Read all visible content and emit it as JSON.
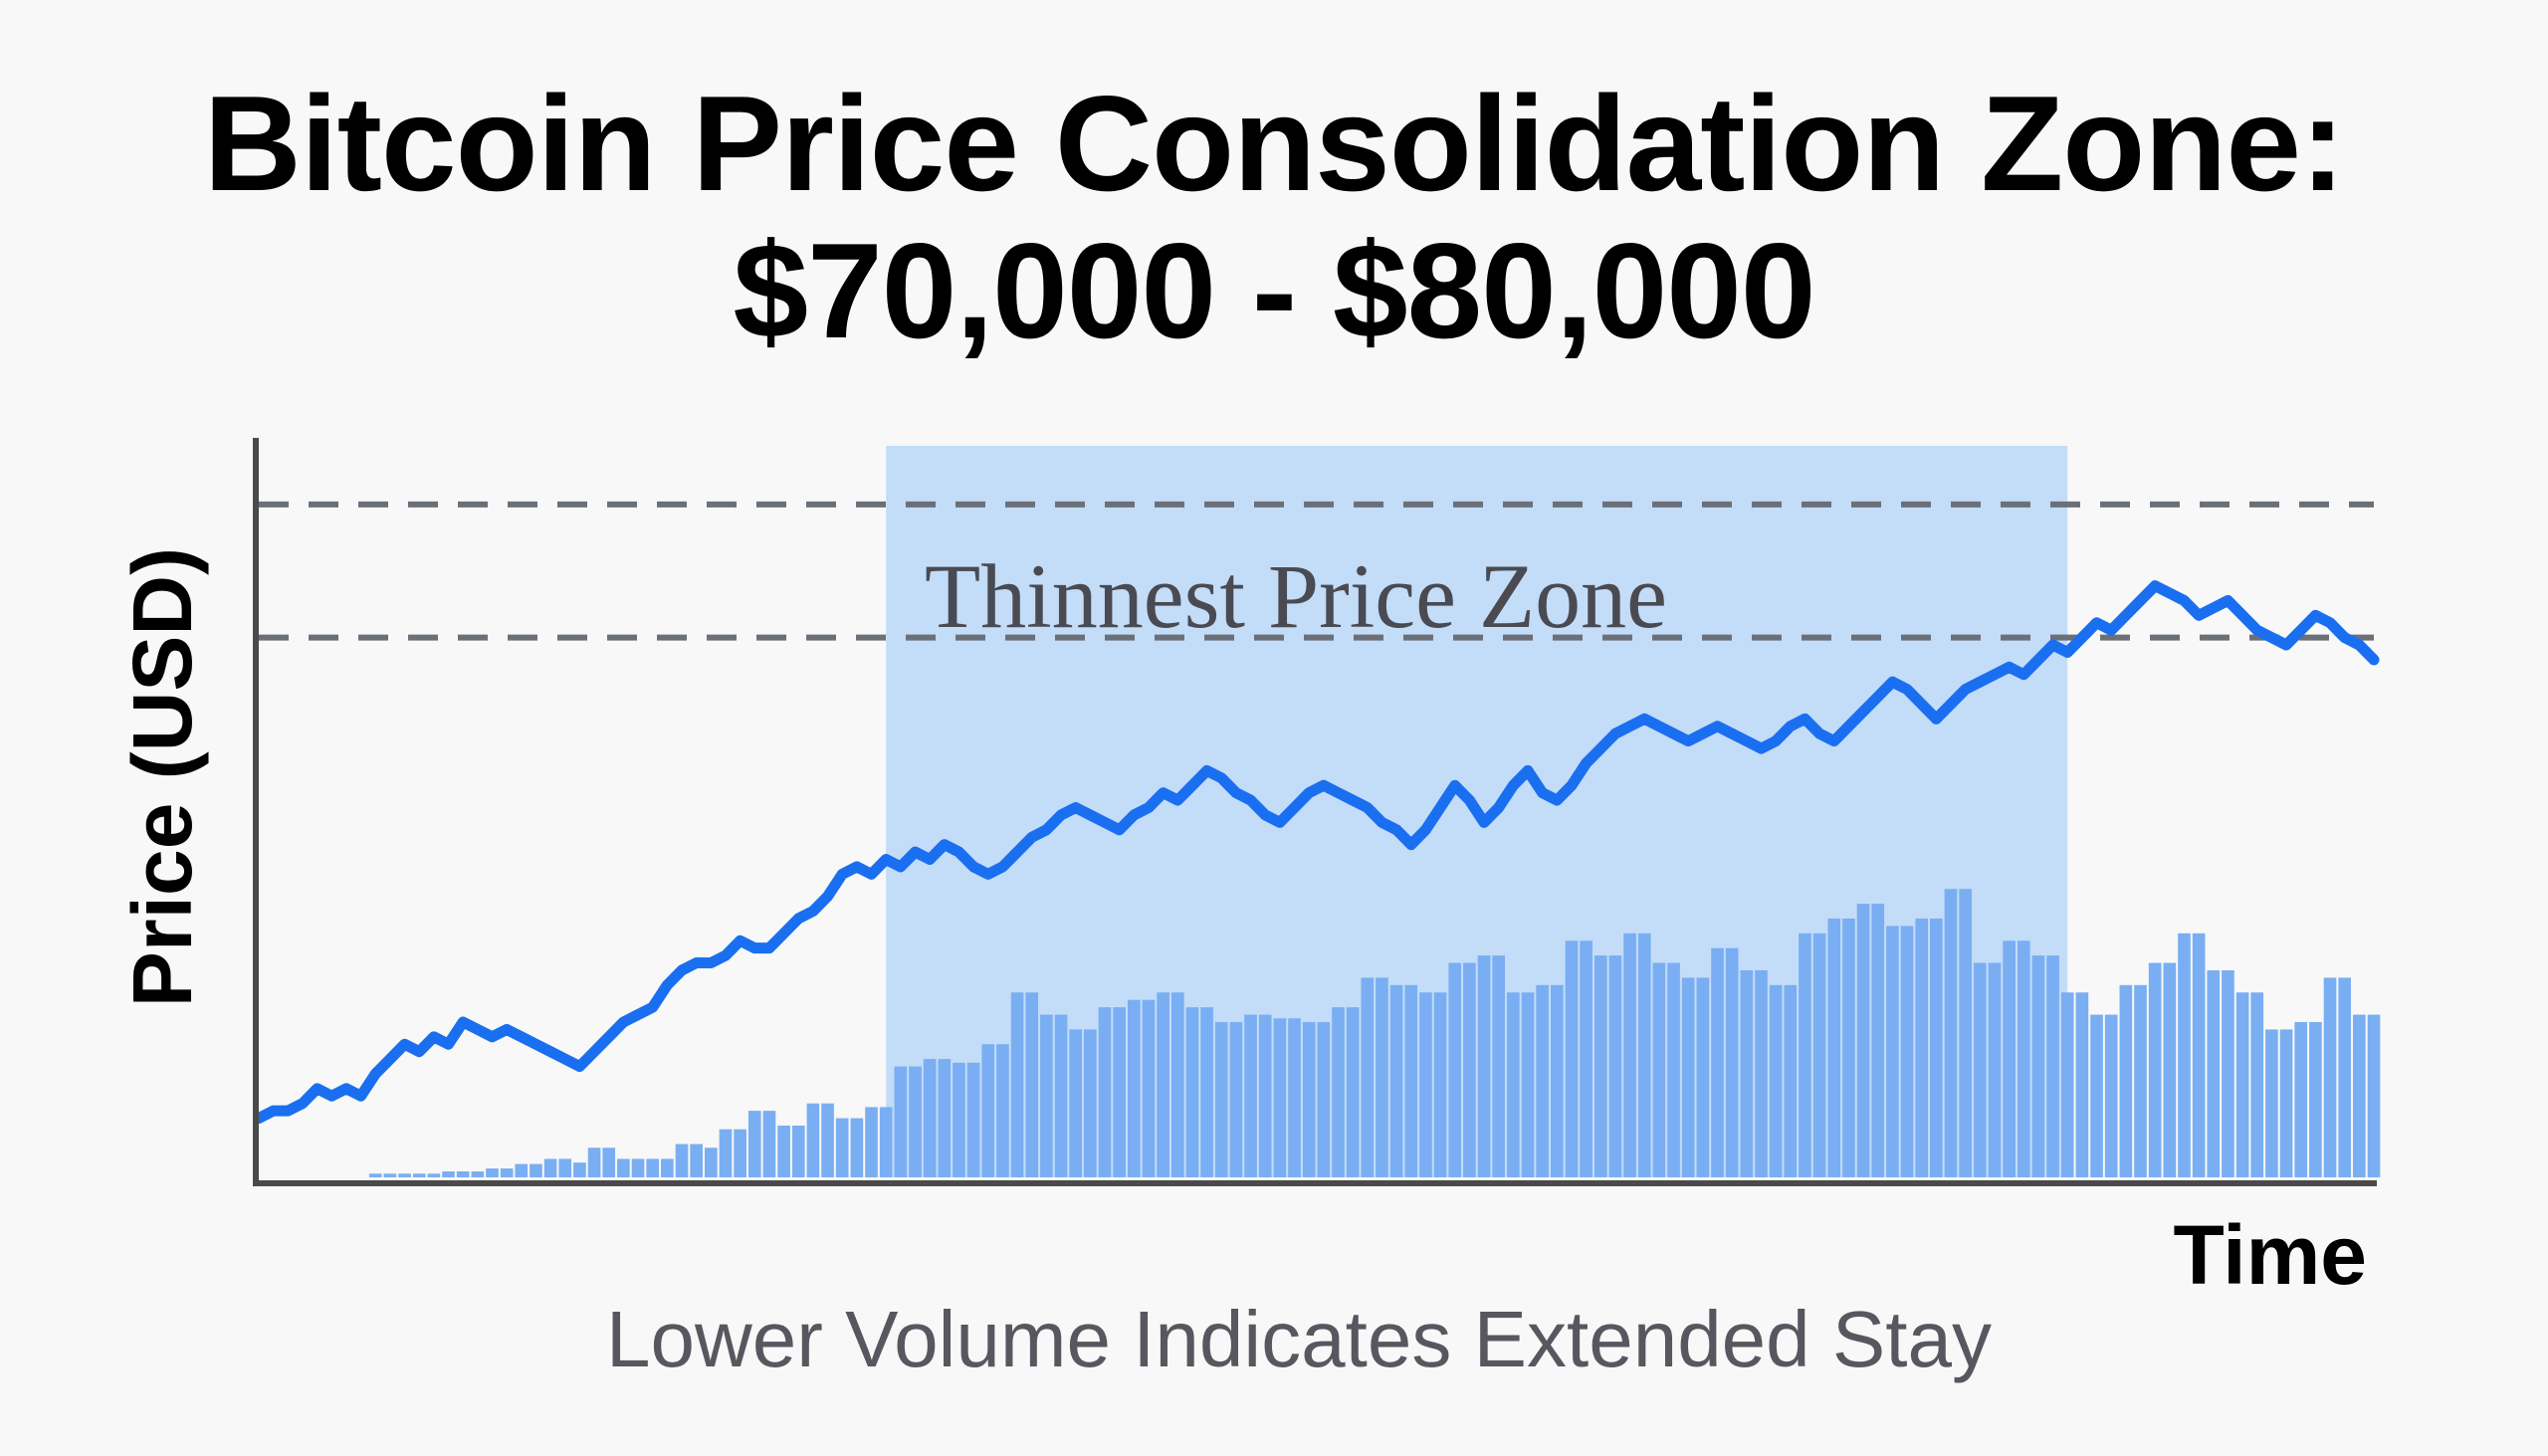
{
  "title_line1": "Bitcoin Price Consolidation Zone:",
  "title_line2": "$70,000 - $80,000",
  "caption": "Lower Volume Indicates Extended Stay",
  "colors": {
    "price_line": "#1a6ff0",
    "volume_bar": "#7aaef2",
    "zone_fill": "#c3dcf8",
    "reference_line": "#6b7078",
    "axis": "#4a4a4a"
  },
  "chart_data": {
    "type": "line",
    "title": "Bitcoin Price Consolidation Zone: $70,000 - $80,000",
    "xlabel": "Time",
    "ylabel": "Price (USD)",
    "ylim": [
      0,
      100
    ],
    "x": [
      0,
      1,
      2,
      3,
      4,
      5,
      6,
      7,
      8,
      9,
      10,
      11,
      12,
      13,
      14,
      15,
      16,
      17,
      18,
      19,
      20,
      21,
      22,
      23,
      24,
      25,
      26,
      27,
      28,
      29,
      30,
      31,
      32,
      33,
      34,
      35,
      36,
      37,
      38,
      39,
      40,
      41,
      42,
      43,
      44,
      45,
      46,
      47,
      48,
      49,
      50,
      51,
      52,
      53,
      54,
      55,
      56,
      57,
      58,
      59,
      60,
      61,
      62,
      63,
      64,
      65,
      66,
      67,
      68,
      69,
      70,
      71,
      72,
      73,
      74,
      75,
      76,
      77,
      78,
      79,
      80,
      81,
      82,
      83,
      84,
      85,
      86,
      87,
      88,
      89,
      90,
      91,
      92,
      93,
      94,
      95,
      96,
      97,
      98,
      99,
      100,
      101,
      102,
      103,
      104,
      105,
      106,
      107,
      108,
      109,
      110,
      111,
      112,
      113,
      114,
      115,
      116,
      117,
      118,
      119,
      120,
      121,
      122,
      123,
      124,
      125,
      126,
      127,
      128,
      129,
      130,
      131,
      132,
      133,
      134,
      135,
      136,
      137,
      138,
      139,
      140,
      141,
      142,
      143,
      144,
      145
    ],
    "series": [
      {
        "values": [
          8,
          9,
          9,
          10,
          12,
          11,
          12,
          11,
          14,
          16,
          18,
          17,
          19,
          18,
          21,
          20,
          19,
          20,
          19,
          18,
          17,
          16,
          15,
          17,
          19,
          21,
          22,
          23,
          26,
          28,
          29,
          29,
          30,
          32,
          31,
          31,
          33,
          35,
          36,
          38,
          41,
          42,
          41,
          43,
          42,
          44,
          43,
          45,
          44,
          42,
          41,
          42,
          44,
          46,
          47,
          49,
          50,
          49,
          48,
          47,
          49,
          50,
          52,
          51,
          53,
          55,
          54,
          52,
          51,
          49,
          48,
          50,
          52,
          53,
          52,
          51,
          50,
          48,
          47,
          45,
          47,
          50,
          53,
          51,
          48,
          50,
          53,
          55,
          52,
          51,
          53,
          56,
          58,
          60,
          61,
          62,
          61,
          60,
          59,
          60,
          61,
          60,
          59,
          58,
          59,
          61,
          62,
          60,
          59,
          61,
          63,
          65,
          67,
          66,
          64,
          62,
          64,
          66,
          67,
          68,
          69,
          68,
          70,
          72,
          71,
          73,
          75,
          74,
          76,
          78,
          80,
          79,
          78,
          76,
          77,
          78,
          76,
          74,
          73,
          72,
          74,
          76,
          75,
          73,
          72,
          70
        ],
        "fidelity_note": null
      }
    ],
    "volume": {
      "values": [
        0,
        0,
        0,
        0,
        0,
        0,
        0,
        0,
        0.5,
        0.5,
        0.5,
        0.5,
        0.5,
        0.8,
        0.8,
        0.8,
        1.2,
        1.2,
        1.8,
        1.8,
        2.5,
        2.5,
        2,
        4,
        4,
        2.5,
        2.5,
        2.5,
        2.5,
        4.5,
        4.5,
        4,
        6.5,
        6.5,
        9,
        9,
        7,
        7,
        10,
        10,
        8,
        8,
        9.5,
        9.5,
        15,
        15,
        16,
        16,
        15.5,
        15.5,
        18,
        18,
        25,
        25,
        22,
        22,
        20,
        20,
        23,
        23,
        24,
        24,
        25,
        25,
        23,
        23,
        21,
        21,
        22,
        22,
        21.5,
        21.5,
        21,
        21,
        23,
        23,
        27,
        27,
        26,
        26,
        25,
        25,
        29,
        29,
        30,
        30,
        25,
        25,
        26,
        26,
        32,
        32,
        30,
        30,
        33,
        33,
        29,
        29,
        27,
        27,
        31,
        31,
        28,
        28,
        26,
        26,
        33,
        33,
        35,
        35,
        37,
        37,
        34,
        34,
        35,
        35,
        39,
        39,
        29,
        29,
        32,
        32,
        30,
        30,
        25,
        25,
        22,
        22,
        26,
        26,
        29,
        29,
        33,
        33,
        28,
        28,
        25,
        25,
        20,
        20,
        21,
        21,
        27,
        27,
        22,
        22
      ],
      "fidelity_note": null
    },
    "annotations": {
      "zone_label": "Thinnest Price Zone",
      "zone_x_range": [
        43,
        124
      ],
      "reference_lines": [
        73,
        91
      ]
    },
    "grid": false
  }
}
